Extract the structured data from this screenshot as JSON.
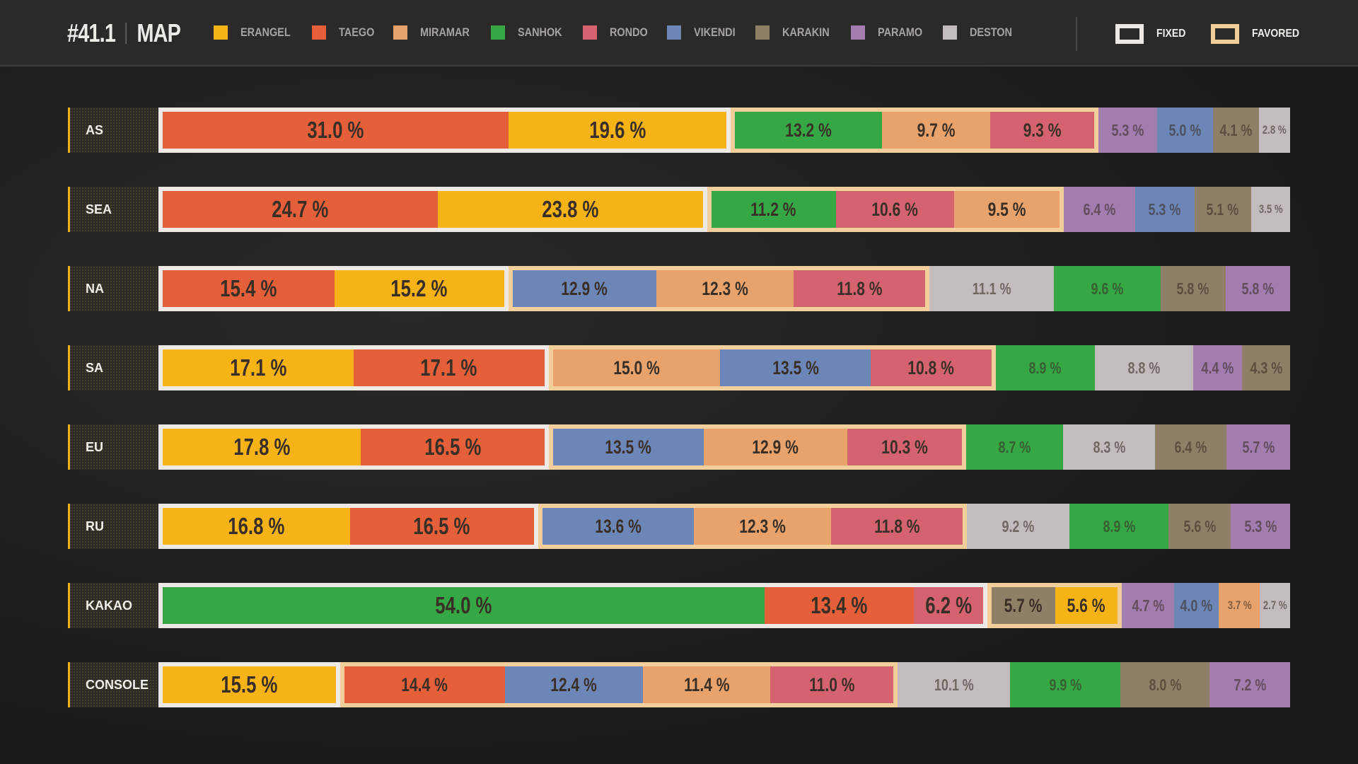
{
  "header": {
    "number": "#41.1",
    "title": "MAP"
  },
  "legend": [
    {
      "label": "ERANGEL",
      "color": "#f5b316"
    },
    {
      "label": "TAEGO",
      "color": "#e5603a"
    },
    {
      "label": "MIRAMAR",
      "color": "#e8a36c"
    },
    {
      "label": "SANHOK",
      "color": "#35a845"
    },
    {
      "label": "RONDO",
      "color": "#d5636f"
    },
    {
      "label": "VIKENDI",
      "color": "#6c86b8"
    },
    {
      "label": "KARAKIN",
      "color": "#8f7f66"
    },
    {
      "label": "PARAMO",
      "color": "#a37cb0"
    },
    {
      "label": "DESTON",
      "color": "#c3bcbe"
    }
  ],
  "keys": {
    "fixed": {
      "label": "FIXED",
      "color": "#efe9e6"
    },
    "favored": {
      "label": "FAVORED",
      "color": "#f2cf9a"
    }
  },
  "chart_data": {
    "type": "bar",
    "stacked": true,
    "orientation": "horizontal",
    "unit": "%",
    "rows": [
      {
        "region": "AS",
        "fixed": [
          [
            "TAEGO",
            31.0
          ],
          [
            "ERANGEL",
            19.6
          ]
        ],
        "favored": [
          [
            "SANHOK",
            13.2
          ],
          [
            "MIRAMAR",
            9.7
          ],
          [
            "RONDO",
            9.3
          ]
        ],
        "rest": [
          [
            "PARAMO",
            5.3
          ],
          [
            "VIKENDI",
            5.0
          ],
          [
            "KARAKIN",
            4.1
          ],
          [
            "DESTON",
            2.8
          ]
        ]
      },
      {
        "region": "SEA",
        "fixed": [
          [
            "TAEGO",
            24.7
          ],
          [
            "ERANGEL",
            23.8
          ]
        ],
        "favored": [
          [
            "SANHOK",
            11.2
          ],
          [
            "RONDO",
            10.6
          ],
          [
            "MIRAMAR",
            9.5
          ]
        ],
        "rest": [
          [
            "PARAMO",
            6.4
          ],
          [
            "VIKENDI",
            5.3
          ],
          [
            "KARAKIN",
            5.1
          ],
          [
            "DESTON",
            3.5
          ]
        ]
      },
      {
        "region": "NA",
        "fixed": [
          [
            "TAEGO",
            15.4
          ],
          [
            "ERANGEL",
            15.2
          ]
        ],
        "favored": [
          [
            "VIKENDI",
            12.9
          ],
          [
            "MIRAMAR",
            12.3
          ],
          [
            "RONDO",
            11.8
          ]
        ],
        "rest": [
          [
            "DESTON",
            11.1
          ],
          [
            "SANHOK",
            9.6
          ],
          [
            "KARAKIN",
            5.8
          ],
          [
            "PARAMO",
            5.8
          ]
        ]
      },
      {
        "region": "SA",
        "fixed": [
          [
            "ERANGEL",
            17.1
          ],
          [
            "TAEGO",
            17.1
          ]
        ],
        "favored": [
          [
            "MIRAMAR",
            15.0
          ],
          [
            "VIKENDI",
            13.5
          ],
          [
            "RONDO",
            10.8
          ]
        ],
        "rest": [
          [
            "SANHOK",
            8.9
          ],
          [
            "DESTON",
            8.8
          ],
          [
            "PARAMO",
            4.4
          ],
          [
            "KARAKIN",
            4.3
          ]
        ]
      },
      {
        "region": "EU",
        "fixed": [
          [
            "ERANGEL",
            17.8
          ],
          [
            "TAEGO",
            16.5
          ]
        ],
        "favored": [
          [
            "VIKENDI",
            13.5
          ],
          [
            "MIRAMAR",
            12.9
          ],
          [
            "RONDO",
            10.3
          ]
        ],
        "rest": [
          [
            "SANHOK",
            8.7
          ],
          [
            "DESTON",
            8.3
          ],
          [
            "KARAKIN",
            6.4
          ],
          [
            "PARAMO",
            5.7
          ]
        ]
      },
      {
        "region": "RU",
        "fixed": [
          [
            "ERANGEL",
            16.8
          ],
          [
            "TAEGO",
            16.5
          ]
        ],
        "favored": [
          [
            "VIKENDI",
            13.6
          ],
          [
            "MIRAMAR",
            12.3
          ],
          [
            "RONDO",
            11.8
          ]
        ],
        "rest": [
          [
            "DESTON",
            9.2
          ],
          [
            "SANHOK",
            8.9
          ],
          [
            "KARAKIN",
            5.6
          ],
          [
            "PARAMO",
            5.3
          ]
        ]
      },
      {
        "region": "KAKAO",
        "fixed": [
          [
            "SANHOK",
            54.0
          ],
          [
            "TAEGO",
            13.4
          ],
          [
            "RONDO",
            6.2
          ]
        ],
        "favored": [
          [
            "KARAKIN",
            5.7
          ],
          [
            "ERANGEL",
            5.6
          ]
        ],
        "rest": [
          [
            "PARAMO",
            4.7
          ],
          [
            "VIKENDI",
            4.0
          ],
          [
            "MIRAMAR",
            3.7
          ],
          [
            "DESTON",
            2.7
          ]
        ]
      },
      {
        "region": "CONSOLE",
        "fixed": [
          [
            "ERANGEL",
            15.5
          ]
        ],
        "favored": [
          [
            "TAEGO",
            14.4
          ],
          [
            "VIKENDI",
            12.4
          ],
          [
            "MIRAMAR",
            11.4
          ],
          [
            "RONDO",
            11.0
          ]
        ],
        "rest": [
          [
            "DESTON",
            10.1
          ],
          [
            "SANHOK",
            9.9
          ],
          [
            "KARAKIN",
            8.0
          ],
          [
            "PARAMO",
            7.2
          ]
        ]
      }
    ]
  }
}
